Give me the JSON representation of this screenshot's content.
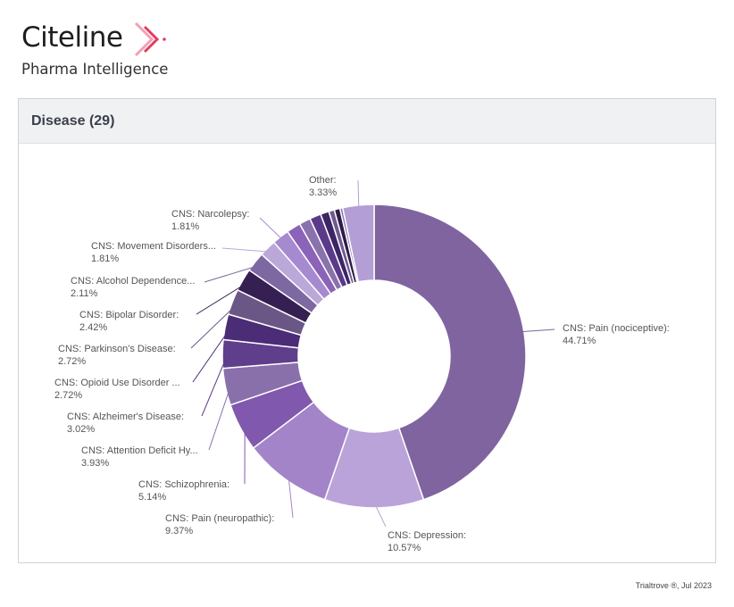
{
  "brand": {
    "name": "Citeline",
    "tagline": "Pharma Intelligence"
  },
  "panel": {
    "title": "Disease (29)"
  },
  "footer": "Trialtrove ®, Jul 2023",
  "chart_data": {
    "type": "pie",
    "variant": "donut",
    "title": "Disease (29)",
    "slices": [
      {
        "label": "CNS: Pain (nociceptive):",
        "value_label": "44.71%",
        "value": 44.71,
        "color": "#7f64a0"
      },
      {
        "label": "CNS: Depression:",
        "value_label": "10.57%",
        "value": 10.57,
        "color": "#b9a3d8"
      },
      {
        "label": "CNS: Pain (neuropathic):",
        "value_label": "9.37%",
        "value": 9.37,
        "color": "#a384c8"
      },
      {
        "label": "CNS: Schizophrenia:",
        "value_label": "5.14%",
        "value": 5.14,
        "color": "#8058ae"
      },
      {
        "label": "CNS: Attention Deficit Hy...",
        "value_label": "3.93%",
        "value": 3.93,
        "color": "#8a70ab"
      },
      {
        "label": "CNS: Alzheimer's Disease:",
        "value_label": "3.02%",
        "value": 3.02,
        "color": "#5f3e8c"
      },
      {
        "label": "CNS: Opioid Use Disorder ...",
        "value_label": "2.72%",
        "value": 2.72,
        "color": "#4b2c76"
      },
      {
        "label": "CNS: Parkinson's Disease:",
        "value_label": "2.72%",
        "value": 2.72,
        "color": "#6b5786"
      },
      {
        "label": "CNS: Bipolar Disorder:",
        "value_label": "2.42%",
        "value": 2.42,
        "color": "#361f52"
      },
      {
        "label": "CNS: Alcohol Dependence...",
        "value_label": "2.11%",
        "value": 2.11,
        "color": "#7d68a2"
      },
      {
        "label": "CNS: Movement Disorders...",
        "value_label": "1.81%",
        "value": 1.81,
        "color": "#bba8d9"
      },
      {
        "label": "CNS: Narcolepsy:",
        "value_label": "1.81%",
        "value": 1.81,
        "color": "#a68ad0"
      },
      {
        "value": 1.51,
        "color": "#8b63b8"
      },
      {
        "value": 1.21,
        "color": "#8a72ad"
      },
      {
        "value": 1.21,
        "color": "#5b3a8a"
      },
      {
        "value": 0.91,
        "color": "#3e2566"
      },
      {
        "value": 0.6,
        "color": "#6f5a8e"
      },
      {
        "value": 0.6,
        "color": "#2f1a48"
      },
      {
        "value": 0.3,
        "color": "#8c74b4"
      },
      {
        "label": "Other:",
        "value_label": "3.33%",
        "value": 3.33,
        "color": "#b39fd6"
      }
    ]
  }
}
